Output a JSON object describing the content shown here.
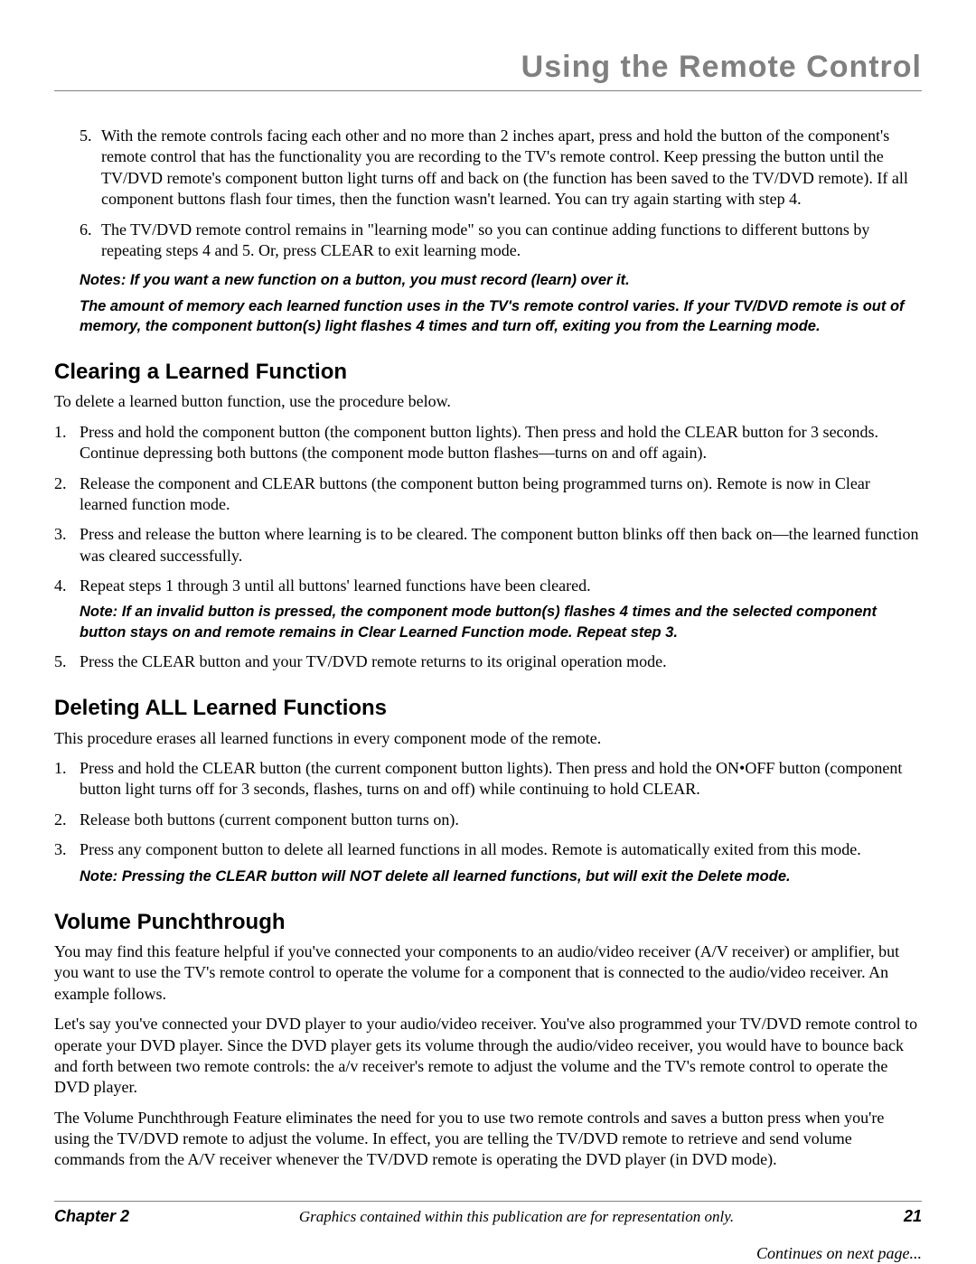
{
  "header": {
    "title": "Using the Remote Control"
  },
  "top_list": {
    "items": [
      {
        "num": "5",
        "text": "With the remote controls facing each other and no more than 2 inches apart, press and hold the button of the component's remote control that has the functionality you are recording to the TV's remote control. Keep pressing the button until the TV/DVD remote's component button light turns off and back on (the function has been saved to the TV/DVD remote). If all component buttons flash four times, then the function wasn't learned. You can try again starting with step 4."
      },
      {
        "num": "6",
        "text": "The TV/DVD remote control remains in \"learning mode\" so you can continue adding functions to different buttons by repeating steps 4 and 5. Or, press CLEAR to exit learning mode."
      }
    ],
    "note1": "Notes: If you want a new function on a button, you must record (learn) over it.",
    "note2": "The amount of memory each learned function uses in the TV's remote control varies. If your TV/DVD remote is out of memory, the component button(s) light flashes 4 times and turn off, exiting you from the Learning mode."
  },
  "sections": {
    "clearing": {
      "heading": "Clearing a Learned Function",
      "intro": "To delete a learned button function, use the procedure below.",
      "items": [
        {
          "num": "1",
          "text": "Press and hold the component button (the component button lights). Then press and hold the CLEAR button for 3 seconds. Continue depressing both buttons (the component mode button flashes—turns on and off again)."
        },
        {
          "num": "2",
          "text": "Release the component and CLEAR buttons (the component button being programmed turns on). Remote is now in Clear learned function mode."
        },
        {
          "num": "3",
          "text": "Press and release the button where learning is to be cleared. The component button blinks off then back on—the learned function was cleared successfully."
        },
        {
          "num": "4",
          "text": "Repeat steps 1 through 3 until all buttons' learned functions have been cleared.",
          "note": "Note: If an invalid button is pressed, the component mode button(s) flashes 4 times and the selected component button stays on and remote remains in Clear Learned Function mode. Repeat step 3."
        },
        {
          "num": "5",
          "text": "Press the CLEAR button and your TV/DVD remote returns to its original operation mode."
        }
      ]
    },
    "deleting": {
      "heading": "Deleting ALL Learned Functions",
      "intro": "This procedure erases all learned functions in every component mode of the remote.",
      "items": [
        {
          "num": "1",
          "text": "Press and hold the CLEAR button (the current component button lights). Then press and hold the ON•OFF button (component button light turns off for 3 seconds, flashes, turns on and off) while continuing to hold CLEAR."
        },
        {
          "num": "2",
          "text": "Release both buttons (current component button turns on)."
        },
        {
          "num": "3",
          "text": "Press any component button to delete all learned functions in all modes. Remote is automatically exited from this mode.",
          "note": "Note: Pressing the CLEAR button will NOT delete all learned functions, but will exit the Delete mode."
        }
      ]
    },
    "volume": {
      "heading": "Volume Punchthrough",
      "paras": [
        "You may find this feature helpful if you've connected your components to an audio/video receiver (A/V receiver) or amplifier, but you want to use the TV's remote control to operate the volume for a component that is connected to the audio/video receiver. An example follows.",
        "Let's say you've connected your DVD player to your audio/video receiver. You've also programmed your TV/DVD remote control to operate your DVD player. Since the DVD player gets its volume through the audio/video receiver, you would have to bounce back and forth between two remote controls: the a/v receiver's remote to adjust the volume and the TV's remote control to operate the DVD player.",
        "The Volume Punchthrough Feature eliminates the need for you to use two remote controls and saves a button press when you're using the TV/DVD remote to adjust the volume. In effect, you are telling the TV/DVD remote to retrieve and send volume commands from the A/V receiver whenever the TV/DVD remote is operating the DVD player (in DVD mode)."
      ]
    }
  },
  "continues": "Continues on next page...",
  "footer": {
    "chapter": "Chapter 2",
    "center": "Graphics contained within this publication are for representation only.",
    "page": "21"
  }
}
